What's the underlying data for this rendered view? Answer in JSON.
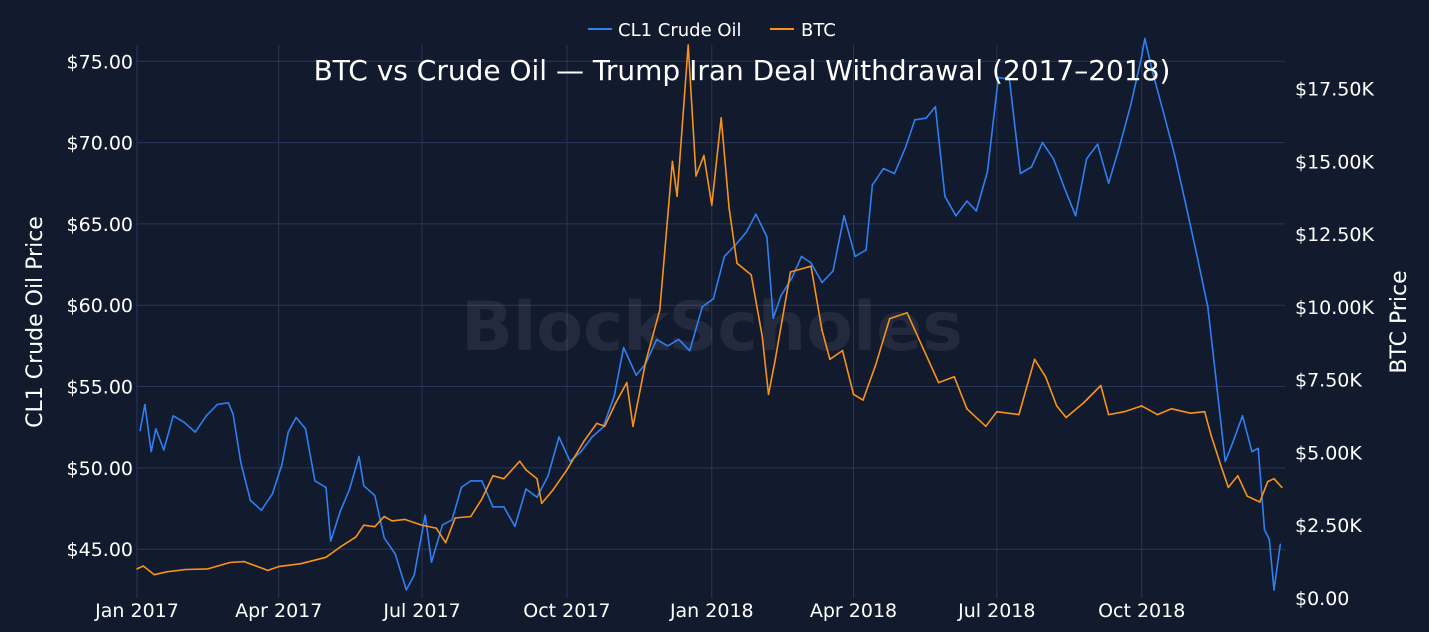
{
  "watermark": "BlockScholes",
  "chart_data": {
    "type": "line",
    "title": "BTC vs Crude Oil — Trump Iran Deal Withdrawal (2017–2018)",
    "ylabel": "CL1 Crude Oil Price",
    "y2label": "BTC Price",
    "legend_position": "top-center",
    "grid": true,
    "ylim": [
      42,
      76
    ],
    "y2lim": [
      0,
      19000
    ],
    "xlim": [
      "2017-01-01",
      "2018-12-31"
    ],
    "x_ticks": [
      "Jan 2017",
      "Apr 2017",
      "Jul 2017",
      "Oct 2017",
      "Jan 2018",
      "Apr 2018",
      "Jul 2018",
      "Oct 2018"
    ],
    "y_ticks": [
      "$45.00",
      "$50.00",
      "$55.00",
      "$60.00",
      "$65.00",
      "$70.00",
      "$75.00"
    ],
    "y2_ticks": [
      "$0.00",
      "$2.50K",
      "$5.00K",
      "$7.50K",
      "$10.00K",
      "$12.50K",
      "$15.00K",
      "$17.50K"
    ],
    "series": [
      {
        "name": "CL1 Crude Oil",
        "color": "#2f7ff0",
        "axis": "left",
        "points": [
          [
            "2017-01-03",
            52.3
          ],
          [
            "2017-01-06",
            53.9
          ],
          [
            "2017-01-10",
            51.0
          ],
          [
            "2017-01-13",
            52.4
          ],
          [
            "2017-01-18",
            51.1
          ],
          [
            "2017-01-24",
            53.2
          ],
          [
            "2017-01-31",
            52.8
          ],
          [
            "2017-02-07",
            52.2
          ],
          [
            "2017-02-14",
            53.2
          ],
          [
            "2017-02-21",
            53.9
          ],
          [
            "2017-02-28",
            54.0
          ],
          [
            "2017-03-03",
            53.3
          ],
          [
            "2017-03-08",
            50.3
          ],
          [
            "2017-03-14",
            48.0
          ],
          [
            "2017-03-21",
            47.4
          ],
          [
            "2017-03-28",
            48.4
          ],
          [
            "2017-04-03",
            50.2
          ],
          [
            "2017-04-07",
            52.2
          ],
          [
            "2017-04-12",
            53.1
          ],
          [
            "2017-04-18",
            52.4
          ],
          [
            "2017-04-24",
            49.2
          ],
          [
            "2017-05-01",
            48.8
          ],
          [
            "2017-05-04",
            45.5
          ],
          [
            "2017-05-10",
            47.3
          ],
          [
            "2017-05-16",
            48.7
          ],
          [
            "2017-05-22",
            50.7
          ],
          [
            "2017-05-25",
            48.9
          ],
          [
            "2017-06-01",
            48.3
          ],
          [
            "2017-06-07",
            45.7
          ],
          [
            "2017-06-14",
            44.7
          ],
          [
            "2017-06-21",
            42.5
          ],
          [
            "2017-06-26",
            43.4
          ],
          [
            "2017-07-03",
            47.1
          ],
          [
            "2017-07-07",
            44.2
          ],
          [
            "2017-07-14",
            46.5
          ],
          [
            "2017-07-20",
            46.8
          ],
          [
            "2017-07-26",
            48.8
          ],
          [
            "2017-08-01",
            49.2
          ],
          [
            "2017-08-08",
            49.2
          ],
          [
            "2017-08-15",
            47.6
          ],
          [
            "2017-08-22",
            47.6
          ],
          [
            "2017-08-29",
            46.4
          ],
          [
            "2017-09-05",
            48.7
          ],
          [
            "2017-09-12",
            48.2
          ],
          [
            "2017-09-19",
            49.5
          ],
          [
            "2017-09-26",
            51.9
          ],
          [
            "2017-10-03",
            50.4
          ],
          [
            "2017-10-10",
            51.0
          ],
          [
            "2017-10-17",
            51.9
          ],
          [
            "2017-10-24",
            52.5
          ],
          [
            "2017-10-31",
            54.4
          ],
          [
            "2017-11-06",
            57.4
          ],
          [
            "2017-11-14",
            55.7
          ],
          [
            "2017-11-20",
            56.4
          ],
          [
            "2017-11-27",
            57.9
          ],
          [
            "2017-12-04",
            57.5
          ],
          [
            "2017-12-11",
            57.9
          ],
          [
            "2017-12-18",
            57.2
          ],
          [
            "2017-12-26",
            59.9
          ],
          [
            "2018-01-02",
            60.4
          ],
          [
            "2018-01-09",
            63.0
          ],
          [
            "2018-01-16",
            63.7
          ],
          [
            "2018-01-23",
            64.5
          ],
          [
            "2018-01-29",
            65.6
          ],
          [
            "2018-02-05",
            64.2
          ],
          [
            "2018-02-09",
            59.2
          ],
          [
            "2018-02-14",
            60.6
          ],
          [
            "2018-02-21",
            61.7
          ],
          [
            "2018-02-27",
            63.0
          ],
          [
            "2018-03-05",
            62.6
          ],
          [
            "2018-03-12",
            61.4
          ],
          [
            "2018-03-19",
            62.1
          ],
          [
            "2018-03-26",
            65.5
          ],
          [
            "2018-04-02",
            63.0
          ],
          [
            "2018-04-09",
            63.4
          ],
          [
            "2018-04-13",
            67.4
          ],
          [
            "2018-04-20",
            68.4
          ],
          [
            "2018-04-27",
            68.1
          ],
          [
            "2018-05-04",
            69.7
          ],
          [
            "2018-05-10",
            71.4
          ],
          [
            "2018-05-17",
            71.5
          ],
          [
            "2018-05-23",
            72.2
          ],
          [
            "2018-05-29",
            66.7
          ],
          [
            "2018-06-05",
            65.5
          ],
          [
            "2018-06-12",
            66.4
          ],
          [
            "2018-06-18",
            65.8
          ],
          [
            "2018-06-25",
            68.2
          ],
          [
            "2018-07-02",
            74.0
          ],
          [
            "2018-07-09",
            73.9
          ],
          [
            "2018-07-16",
            68.1
          ],
          [
            "2018-07-23",
            68.5
          ],
          [
            "2018-07-30",
            70.0
          ],
          [
            "2018-08-06",
            69.0
          ],
          [
            "2018-08-13",
            67.2
          ],
          [
            "2018-08-20",
            65.5
          ],
          [
            "2018-08-27",
            69.0
          ],
          [
            "2018-09-03",
            69.9
          ],
          [
            "2018-09-10",
            67.5
          ],
          [
            "2018-09-17",
            69.8
          ],
          [
            "2018-09-24",
            72.3
          ],
          [
            "2018-10-01",
            75.3
          ],
          [
            "2018-10-03",
            76.4
          ],
          [
            "2018-10-08",
            74.3
          ],
          [
            "2018-10-15",
            71.8
          ],
          [
            "2018-10-22",
            69.2
          ],
          [
            "2018-10-29",
            66.2
          ],
          [
            "2018-11-05",
            63.1
          ],
          [
            "2018-11-12",
            59.9
          ],
          [
            "2018-11-16",
            56.5
          ],
          [
            "2018-11-23",
            50.4
          ],
          [
            "2018-11-28",
            51.6
          ],
          [
            "2018-12-04",
            53.2
          ],
          [
            "2018-12-10",
            51.0
          ],
          [
            "2018-12-14",
            51.2
          ],
          [
            "2018-12-18",
            46.2
          ],
          [
            "2018-12-21",
            45.6
          ],
          [
            "2018-12-24",
            42.5
          ],
          [
            "2018-12-27",
            44.6
          ],
          [
            "2018-12-28",
            45.3
          ]
        ]
      },
      {
        "name": "BTC",
        "color": "#f7931a",
        "axis": "right",
        "points": [
          [
            "2017-01-01",
            1000
          ],
          [
            "2017-01-05",
            1100
          ],
          [
            "2017-01-12",
            800
          ],
          [
            "2017-01-20",
            900
          ],
          [
            "2017-02-01",
            980
          ],
          [
            "2017-02-15",
            1000
          ],
          [
            "2017-03-01",
            1220
          ],
          [
            "2017-03-10",
            1250
          ],
          [
            "2017-03-20",
            1050
          ],
          [
            "2017-03-25",
            950
          ],
          [
            "2017-04-01",
            1080
          ],
          [
            "2017-04-15",
            1180
          ],
          [
            "2017-05-01",
            1400
          ],
          [
            "2017-05-10",
            1750
          ],
          [
            "2017-05-20",
            2100
          ],
          [
            "2017-05-25",
            2500
          ],
          [
            "2017-06-01",
            2450
          ],
          [
            "2017-06-07",
            2800
          ],
          [
            "2017-06-12",
            2650
          ],
          [
            "2017-06-20",
            2700
          ],
          [
            "2017-07-01",
            2500
          ],
          [
            "2017-07-10",
            2400
          ],
          [
            "2017-07-16",
            1900
          ],
          [
            "2017-07-22",
            2750
          ],
          [
            "2017-08-01",
            2800
          ],
          [
            "2017-08-08",
            3400
          ],
          [
            "2017-08-15",
            4200
          ],
          [
            "2017-08-22",
            4100
          ],
          [
            "2017-09-01",
            4700
          ],
          [
            "2017-09-05",
            4400
          ],
          [
            "2017-09-12",
            4100
          ],
          [
            "2017-09-15",
            3250
          ],
          [
            "2017-09-22",
            3700
          ],
          [
            "2017-10-01",
            4400
          ],
          [
            "2017-10-12",
            5400
          ],
          [
            "2017-10-20",
            6000
          ],
          [
            "2017-10-25",
            5900
          ],
          [
            "2017-11-01",
            6700
          ],
          [
            "2017-11-08",
            7400
          ],
          [
            "2017-11-12",
            5900
          ],
          [
            "2017-11-20",
            8100
          ],
          [
            "2017-11-29",
            9900
          ],
          [
            "2017-12-07",
            15000
          ],
          [
            "2017-12-10",
            13800
          ],
          [
            "2017-12-17",
            19000
          ],
          [
            "2017-12-22",
            14500
          ],
          [
            "2017-12-27",
            15200
          ],
          [
            "2018-01-01",
            13500
          ],
          [
            "2018-01-07",
            16500
          ],
          [
            "2018-01-12",
            13400
          ],
          [
            "2018-01-17",
            11500
          ],
          [
            "2018-01-26",
            11100
          ],
          [
            "2018-02-02",
            9000
          ],
          [
            "2018-02-06",
            7000
          ],
          [
            "2018-02-10",
            8100
          ],
          [
            "2018-02-20",
            11200
          ],
          [
            "2018-03-05",
            11400
          ],
          [
            "2018-03-12",
            9200
          ],
          [
            "2018-03-17",
            8200
          ],
          [
            "2018-03-25",
            8500
          ],
          [
            "2018-04-01",
            7000
          ],
          [
            "2018-04-07",
            6800
          ],
          [
            "2018-04-15",
            8000
          ],
          [
            "2018-04-24",
            9600
          ],
          [
            "2018-05-05",
            9800
          ],
          [
            "2018-05-15",
            8600
          ],
          [
            "2018-05-25",
            7400
          ],
          [
            "2018-06-04",
            7600
          ],
          [
            "2018-06-12",
            6500
          ],
          [
            "2018-06-24",
            5900
          ],
          [
            "2018-07-01",
            6400
          ],
          [
            "2018-07-15",
            6300
          ],
          [
            "2018-07-25",
            8200
          ],
          [
            "2018-08-01",
            7600
          ],
          [
            "2018-08-08",
            6600
          ],
          [
            "2018-08-14",
            6200
          ],
          [
            "2018-08-25",
            6700
          ],
          [
            "2018-09-05",
            7300
          ],
          [
            "2018-09-10",
            6300
          ],
          [
            "2018-09-20",
            6400
          ],
          [
            "2018-10-01",
            6600
          ],
          [
            "2018-10-11",
            6300
          ],
          [
            "2018-10-20",
            6500
          ],
          [
            "2018-11-01",
            6350
          ],
          [
            "2018-11-10",
            6400
          ],
          [
            "2018-11-14",
            5600
          ],
          [
            "2018-11-20",
            4600
          ],
          [
            "2018-11-25",
            3800
          ],
          [
            "2018-12-01",
            4200
          ],
          [
            "2018-12-07",
            3500
          ],
          [
            "2018-12-15",
            3300
          ],
          [
            "2018-12-20",
            4000
          ],
          [
            "2018-12-24",
            4100
          ],
          [
            "2018-12-29",
            3800
          ]
        ]
      }
    ]
  }
}
